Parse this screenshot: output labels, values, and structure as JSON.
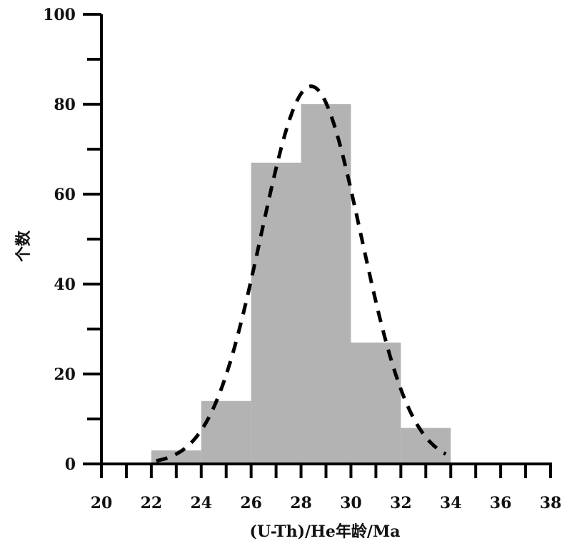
{
  "chart_data": {
    "type": "bar",
    "title": "",
    "xlabel": "(U-Th)/He年龄/Ma",
    "ylabel": "个数",
    "xlim": [
      20,
      38
    ],
    "ylim": [
      0,
      100
    ],
    "x_ticks": [
      "20",
      "22",
      "24",
      "26",
      "28",
      "30",
      "32",
      "34",
      "36",
      "38"
    ],
    "y_ticks": [
      "0",
      "20",
      "40",
      "60",
      "80",
      "100"
    ],
    "bins": [
      {
        "x0": 22,
        "x1": 24,
        "value": 3
      },
      {
        "x0": 24,
        "x1": 26,
        "value": 14
      },
      {
        "x0": 26,
        "x1": 28,
        "value": 67
      },
      {
        "x0": 28,
        "x1": 30,
        "value": 80
      },
      {
        "x0": 30,
        "x1": 32,
        "value": 27
      },
      {
        "x0": 32,
        "x1": 34,
        "value": 8
      }
    ],
    "fit_curve": {
      "style": "dashed",
      "peak_x": 28.4,
      "peak_y": 84,
      "sigma": 2.0,
      "x_range": [
        22.2,
        33.8
      ]
    },
    "bar_color": "#b3b3b3",
    "curve_color": "#000000",
    "grid": false,
    "legend": "none"
  }
}
